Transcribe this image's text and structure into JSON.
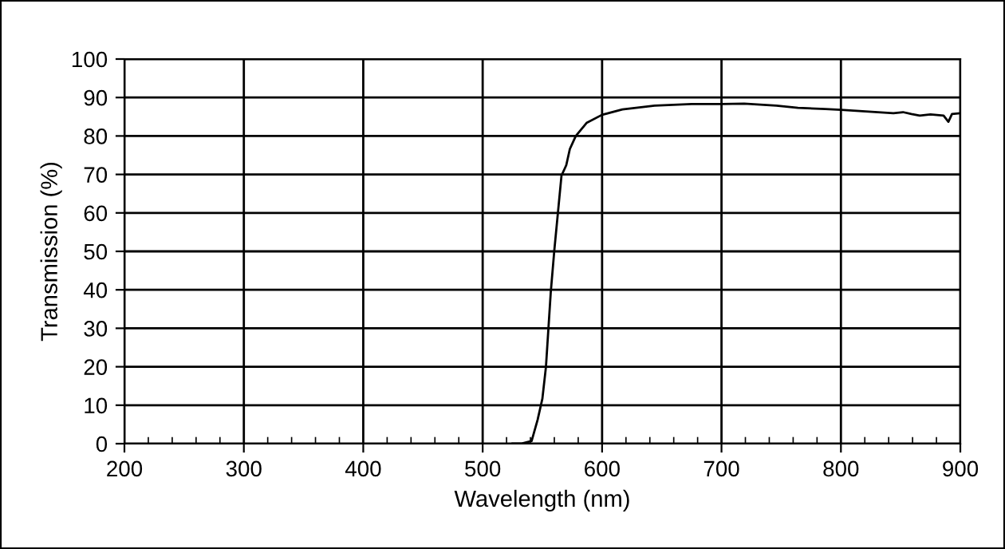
{
  "chart_data": {
    "type": "line",
    "xlabel": "Wavelength (nm)",
    "ylabel": "Transmission (%)",
    "xlim": [
      200,
      900
    ],
    "ylim": [
      0,
      100
    ],
    "xticks": [
      200,
      300,
      400,
      500,
      600,
      700,
      800,
      900
    ],
    "yticks": [
      0,
      10,
      20,
      30,
      40,
      50,
      60,
      70,
      80,
      90,
      100
    ],
    "grid": true,
    "marker": "none",
    "line_style": "solid",
    "series": [
      {
        "color": "#000000",
        "x": [
          525,
          532,
          541,
          546,
          550,
          553,
          557,
          560,
          563,
          566,
          570,
          573,
          578,
          587,
          600,
          617,
          644,
          675,
          700,
          719,
          746,
          764,
          787,
          800,
          844,
          852,
          859,
          866,
          875,
          886,
          890,
          893,
          900
        ],
        "values": [
          0,
          0,
          0.7,
          6.2,
          11.7,
          20,
          39.3,
          50.3,
          60,
          69.7,
          72.4,
          76.6,
          80,
          83.4,
          85.5,
          86.9,
          87.9,
          88.3,
          88.3,
          88.4,
          87.9,
          87.3,
          87.0,
          86.8,
          85.9,
          86.2,
          85.7,
          85.3,
          85.6,
          85.3,
          83.7,
          85.7,
          85.9
        ]
      }
    ]
  }
}
